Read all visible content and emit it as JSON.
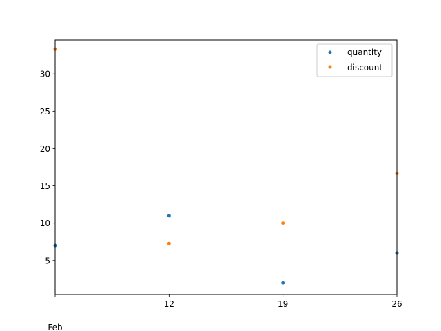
{
  "chart_data": {
    "type": "scatter",
    "x": [
      "2024-02-05",
      "2024-02-12",
      "2024-02-19",
      "2024-02-26"
    ],
    "x_tick_labels": [
      "12",
      "19",
      "26"
    ],
    "x_tick_values": [
      "2024-02-12",
      "2024-02-19",
      "2024-02-26"
    ],
    "x_minor_label": "Feb",
    "xlim": [
      "2024-02-05",
      "2024-02-26"
    ],
    "y_tick_values": [
      5,
      10,
      15,
      20,
      25,
      30
    ],
    "ylim": [
      0.45,
      34.55
    ],
    "series": [
      {
        "name": "quantity",
        "color": "#1f77b4",
        "values": [
          7,
          11,
          2,
          6
        ]
      },
      {
        "name": "discount",
        "color": "#ff7f0e",
        "values": [
          33.33,
          7.27,
          10.0,
          16.67
        ]
      }
    ],
    "legend": {
      "position": "upper-right",
      "entries": [
        "quantity",
        "discount"
      ]
    },
    "title": "",
    "xlabel": "",
    "ylabel": "",
    "grid": false
  }
}
